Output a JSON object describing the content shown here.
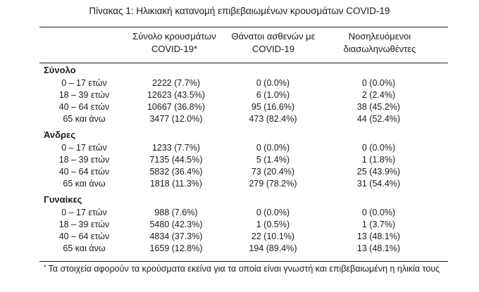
{
  "title": "Πίνακας 1: Ηλικιακή κατανομή επιβεβαιωμένων κρουσμάτων COVID-19",
  "headers": {
    "col1_line1": "Σύνολο κρουσμάτων",
    "col1_line2": "COVID-19*",
    "col2_line1": "Θάνατοι ασθενών με",
    "col2_line2": "COVID-19",
    "col3_line1": "Νοσηλευόμενοι",
    "col3_line2": "διασωληνωθέντες"
  },
  "groups": [
    {
      "name": "Σύνολο",
      "rows": [
        {
          "age": "0 – 17 ετών",
          "cases": "2222 (7.7%)",
          "deaths": "0 (0.0%)",
          "intubated": "0 (0.0%)"
        },
        {
          "age": "18 – 39 ετών",
          "cases": "12623 (43.5%)",
          "deaths": "6 (1.0%)",
          "intubated": "2 (2.4%)"
        },
        {
          "age": "40 – 64 ετών",
          "cases": "10667 (36.8%)",
          "deaths": "95 (16.6%)",
          "intubated": "38 (45.2%)"
        },
        {
          "age": "65 και άνω",
          "cases": "3477 (12.0%)",
          "deaths": "473 (82.4%)",
          "intubated": "44 (52.4%)"
        }
      ]
    },
    {
      "name": "Άνδρες",
      "rows": [
        {
          "age": "0 – 17 ετών",
          "cases": "1233 (7.7%)",
          "deaths": "0 (0.0%)",
          "intubated": "0 (0.0%)"
        },
        {
          "age": "18 – 39 ετών",
          "cases": "7135 (44.5%)",
          "deaths": "5 (1.4%)",
          "intubated": "1 (1.8%)"
        },
        {
          "age": "40 – 64 ετών",
          "cases": "5832 (36.4%)",
          "deaths": "73 (20.4%)",
          "intubated": "25 (43.9%)"
        },
        {
          "age": "65 και άνω",
          "cases": "1818 (11.3%)",
          "deaths": "279 (78.2%)",
          "intubated": "31 (54.4%)"
        }
      ]
    },
    {
      "name": "Γυναίκες",
      "rows": [
        {
          "age": "0 – 17 ετών",
          "cases": "988 (7.6%)",
          "deaths": "0 (0.0%)",
          "intubated": "0 (0.0%)"
        },
        {
          "age": "18 – 39 ετών",
          "cases": "5480 (42.3%)",
          "deaths": "1 (0.5%)",
          "intubated": "1 (3.7%)"
        },
        {
          "age": "40 – 64 ετών",
          "cases": "4834 (37.3%)",
          "deaths": "22 (10.1%)",
          "intubated": "13 (48.1%)"
        },
        {
          "age": "65 και άνω",
          "cases": "1659 (12.8%)",
          "deaths": "194 (89.4%)",
          "intubated": "13 (48.1%)"
        }
      ]
    }
  ],
  "footnote": {
    "marker": "*",
    "text": "Τα στοιχεία αφορούν τα κρούσματα εκείνα για τα οποία είναι γνωστή και επιβεβαιωμένη η ηλικία τους"
  }
}
